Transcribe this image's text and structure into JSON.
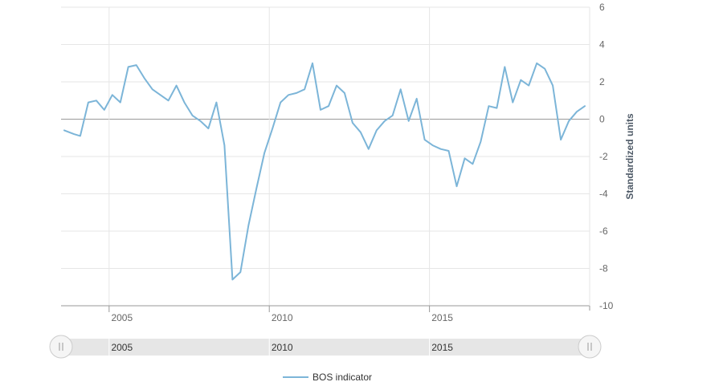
{
  "chart_data": {
    "type": "line",
    "title": "",
    "xlabel": "",
    "ylabel": "Standardized units",
    "ylim": [
      -10,
      6
    ],
    "yticks": [
      6,
      4,
      2,
      0,
      -2,
      -4,
      -6,
      -8,
      -10
    ],
    "xlim": [
      2003.5,
      2020
    ],
    "xticks": [
      2005,
      2010,
      2015
    ],
    "grid": true,
    "legend_position": "bottom-center",
    "series": [
      {
        "name": "BOS indicator",
        "color": "#7cb5d8",
        "x": [
          2003.6,
          2003.9,
          2004.1,
          2004.35,
          2004.6,
          2004.85,
          2005.1,
          2005.35,
          2005.6,
          2005.85,
          2006.1,
          2006.35,
          2006.6,
          2006.85,
          2007.1,
          2007.35,
          2007.6,
          2007.85,
          2008.1,
          2008.35,
          2008.6,
          2008.85,
          2009.1,
          2009.35,
          2009.6,
          2009.85,
          2010.1,
          2010.35,
          2010.6,
          2010.85,
          2011.1,
          2011.35,
          2011.6,
          2011.85,
          2012.1,
          2012.35,
          2012.6,
          2012.85,
          2013.1,
          2013.35,
          2013.6,
          2013.85,
          2014.1,
          2014.35,
          2014.6,
          2014.85,
          2015.1,
          2015.35,
          2015.6,
          2015.85,
          2016.1,
          2016.35,
          2016.6,
          2016.85,
          2017.1,
          2017.35,
          2017.6,
          2017.85,
          2018.1,
          2018.35,
          2018.6,
          2018.85,
          2019.1,
          2019.35,
          2019.6,
          2019.85
        ],
        "y": [
          -0.6,
          -0.8,
          -0.9,
          0.9,
          1.0,
          0.5,
          1.3,
          0.9,
          2.8,
          2.9,
          2.2,
          1.6,
          1.3,
          1.0,
          1.8,
          0.9,
          0.2,
          -0.1,
          -0.5,
          0.9,
          -1.4,
          -8.6,
          -8.2,
          -5.7,
          -3.7,
          -1.8,
          -0.5,
          0.9,
          1.3,
          1.4,
          1.6,
          3.0,
          0.5,
          0.7,
          1.8,
          1.4,
          -0.2,
          -0.7,
          -1.6,
          -0.6,
          -0.1,
          0.2,
          1.6,
          -0.1,
          1.1,
          -1.1,
          -1.4,
          -1.6,
          -1.7,
          -3.6,
          -2.1,
          -2.4,
          -1.2,
          0.7,
          0.6,
          2.8,
          0.9,
          2.1,
          1.8,
          3.0,
          2.7,
          1.8,
          -1.1,
          -0.1,
          0.4,
          0.7
        ]
      }
    ]
  },
  "navigator": {
    "labels": [
      "2005",
      "2010",
      "2015"
    ],
    "left_handle_icon": "grip-icon",
    "right_handle_icon": "grip-icon"
  }
}
